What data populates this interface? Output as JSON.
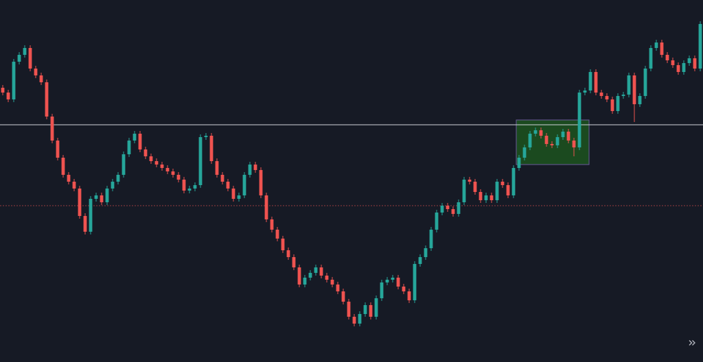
{
  "chart_data": {
    "type": "candlestick",
    "background": "#161a25",
    "up_color": "#26a69a",
    "down_color": "#ef5350",
    "xlim": [
      -0.5,
      127.5
    ],
    "ylim": [
      0,
      528
    ],
    "ohlc": [
      [
        400,
        404,
        389,
        393
      ],
      [
        393,
        397,
        379,
        383
      ],
      [
        383,
        442,
        379,
        438
      ],
      [
        438,
        452,
        434,
        448
      ],
      [
        448,
        462,
        444,
        458
      ],
      [
        458,
        462,
        424,
        428
      ],
      [
        428,
        432,
        414,
        418
      ],
      [
        418,
        422,
        404,
        408
      ],
      [
        408,
        412,
        354,
        358
      ],
      [
        358,
        362,
        319,
        323
      ],
      [
        323,
        327,
        294,
        298
      ],
      [
        298,
        302,
        269,
        273
      ],
      [
        273,
        277,
        259,
        263
      ],
      [
        263,
        267,
        249,
        253
      ],
      [
        253,
        257,
        209,
        213
      ],
      [
        213,
        217,
        186,
        190
      ],
      [
        190,
        242,
        186,
        238
      ],
      [
        238,
        247,
        234,
        243
      ],
      [
        243,
        247,
        229,
        233
      ],
      [
        233,
        257,
        229,
        253
      ],
      [
        253,
        267,
        249,
        263
      ],
      [
        263,
        277,
        259,
        273
      ],
      [
        273,
        307,
        269,
        303
      ],
      [
        303,
        327,
        299,
        323
      ],
      [
        323,
        337,
        319,
        333
      ],
      [
        333,
        337,
        306,
        310
      ],
      [
        310,
        314,
        296,
        300
      ],
      [
        300,
        304,
        289,
        293
      ],
      [
        293,
        297,
        284,
        288
      ],
      [
        288,
        292,
        279,
        283
      ],
      [
        283,
        287,
        274,
        278
      ],
      [
        278,
        282,
        269,
        273
      ],
      [
        273,
        277,
        262,
        266
      ],
      [
        266,
        270,
        246,
        250
      ],
      [
        250,
        257,
        246,
        253
      ],
      [
        253,
        262,
        249,
        258
      ],
      [
        258,
        332,
        254,
        328
      ],
      [
        328,
        334,
        324,
        330
      ],
      [
        330,
        334,
        289,
        293
      ],
      [
        293,
        297,
        269,
        273
      ],
      [
        273,
        277,
        259,
        263
      ],
      [
        263,
        267,
        249,
        253
      ],
      [
        253,
        257,
        234,
        238
      ],
      [
        238,
        247,
        234,
        243
      ],
      [
        243,
        277,
        239,
        273
      ],
      [
        273,
        292,
        269,
        288
      ],
      [
        288,
        292,
        276,
        280
      ],
      [
        280,
        284,
        239,
        243
      ],
      [
        243,
        247,
        204,
        208
      ],
      [
        208,
        212,
        189,
        193
      ],
      [
        193,
        197,
        176,
        180
      ],
      [
        180,
        184,
        159,
        163
      ],
      [
        163,
        167,
        149,
        153
      ],
      [
        153,
        157,
        134,
        138
      ],
      [
        138,
        142,
        109,
        113
      ],
      [
        113,
        127,
        109,
        123
      ],
      [
        123,
        134,
        119,
        130
      ],
      [
        130,
        142,
        126,
        138
      ],
      [
        138,
        142,
        122,
        126
      ],
      [
        126,
        130,
        116,
        120
      ],
      [
        120,
        124,
        109,
        113
      ],
      [
        113,
        117,
        99,
        103
      ],
      [
        103,
        107,
        84,
        88
      ],
      [
        88,
        92,
        62,
        66
      ],
      [
        66,
        70,
        52,
        56
      ],
      [
        56,
        74,
        52,
        70
      ],
      [
        70,
        87,
        66,
        83
      ],
      [
        83,
        87,
        62,
        66
      ],
      [
        66,
        97,
        62,
        93
      ],
      [
        93,
        120,
        89,
        116
      ],
      [
        116,
        124,
        112,
        120
      ],
      [
        120,
        127,
        116,
        123
      ],
      [
        123,
        127,
        106,
        110
      ],
      [
        110,
        114,
        99,
        103
      ],
      [
        103,
        107,
        86,
        90
      ],
      [
        90,
        147,
        86,
        143
      ],
      [
        143,
        157,
        139,
        153
      ],
      [
        153,
        170,
        149,
        166
      ],
      [
        166,
        197,
        162,
        193
      ],
      [
        193,
        222,
        189,
        218
      ],
      [
        218,
        232,
        214,
        228
      ],
      [
        228,
        232,
        219,
        223
      ],
      [
        223,
        227,
        212,
        216
      ],
      [
        216,
        237,
        212,
        233
      ],
      [
        233,
        270,
        229,
        266
      ],
      [
        266,
        270,
        259,
        263
      ],
      [
        263,
        267,
        244,
        248
      ],
      [
        248,
        252,
        232,
        236
      ],
      [
        236,
        247,
        232,
        243
      ],
      [
        243,
        247,
        232,
        236
      ],
      [
        236,
        267,
        232,
        263
      ],
      [
        263,
        267,
        254,
        258
      ],
      [
        258,
        262,
        239,
        243
      ],
      [
        243,
        287,
        239,
        283
      ],
      [
        283,
        302,
        279,
        298
      ],
      [
        298,
        317,
        294,
        313
      ],
      [
        313,
        337,
        309,
        333
      ],
      [
        333,
        342,
        329,
        338
      ],
      [
        338,
        342,
        326,
        330
      ],
      [
        330,
        334,
        314,
        318
      ],
      [
        318,
        322,
        312,
        316
      ],
      [
        316,
        332,
        312,
        328
      ],
      [
        328,
        340,
        324,
        336
      ],
      [
        336,
        340,
        319,
        323
      ],
      [
        323,
        327,
        300,
        313
      ],
      [
        313,
        397,
        309,
        393
      ],
      [
        393,
        400,
        389,
        396
      ],
      [
        396,
        427,
        392,
        423
      ],
      [
        423,
        427,
        389,
        393
      ],
      [
        393,
        397,
        384,
        388
      ],
      [
        388,
        392,
        379,
        383
      ],
      [
        383,
        387,
        362,
        366
      ],
      [
        366,
        392,
        362,
        388
      ],
      [
        388,
        394,
        384,
        390
      ],
      [
        390,
        422,
        386,
        418
      ],
      [
        418,
        422,
        350,
        376
      ],
      [
        376,
        392,
        372,
        388
      ],
      [
        388,
        432,
        384,
        428
      ],
      [
        428,
        462,
        424,
        458
      ],
      [
        458,
        470,
        454,
        466
      ],
      [
        466,
        470,
        444,
        448
      ],
      [
        448,
        452,
        436,
        440
      ],
      [
        440,
        444,
        429,
        433
      ],
      [
        433,
        437,
        419,
        423
      ],
      [
        423,
        440,
        419,
        436
      ],
      [
        436,
        447,
        432,
        443
      ],
      [
        443,
        447,
        424,
        428
      ],
      [
        428,
        497,
        424,
        493
      ]
    ],
    "hlines": [
      {
        "value": 346,
        "color": "#d1d4dc",
        "style": "solid"
      },
      {
        "value": 228,
        "color": "#ef5350",
        "style": "dashed"
      }
    ],
    "zones": [
      {
        "x_range": [
          93.5,
          106.75
        ],
        "y_range": [
          288,
          353
        ],
        "color": "#1e5b1e",
        "border": "#6a5a9a"
      }
    ]
  }
}
